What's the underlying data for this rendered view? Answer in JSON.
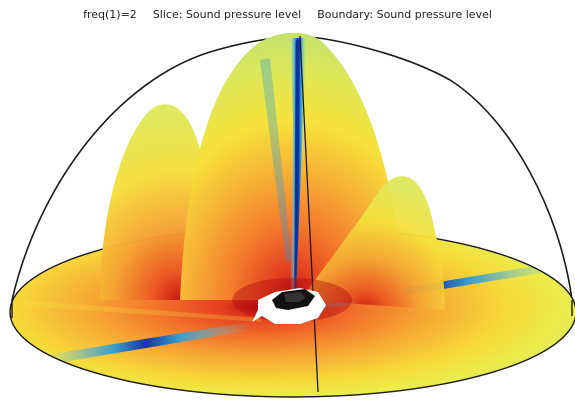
{
  "plot": {
    "freq_label": "freq(1)=2",
    "slice_label": "Slice: Sound pressure level",
    "boundary_label": "Boundary: Sound pressure level"
  },
  "colors": {
    "background": "#ffffff",
    "outline": "#1a1a1a",
    "colormap": [
      "#0b2fa8",
      "#2f9bd3",
      "#cfe36a",
      "#f7e23a",
      "#f59b2e",
      "#e23b1e",
      "#b30e10"
    ]
  },
  "icons": {
    "object": "black-object-icon"
  }
}
